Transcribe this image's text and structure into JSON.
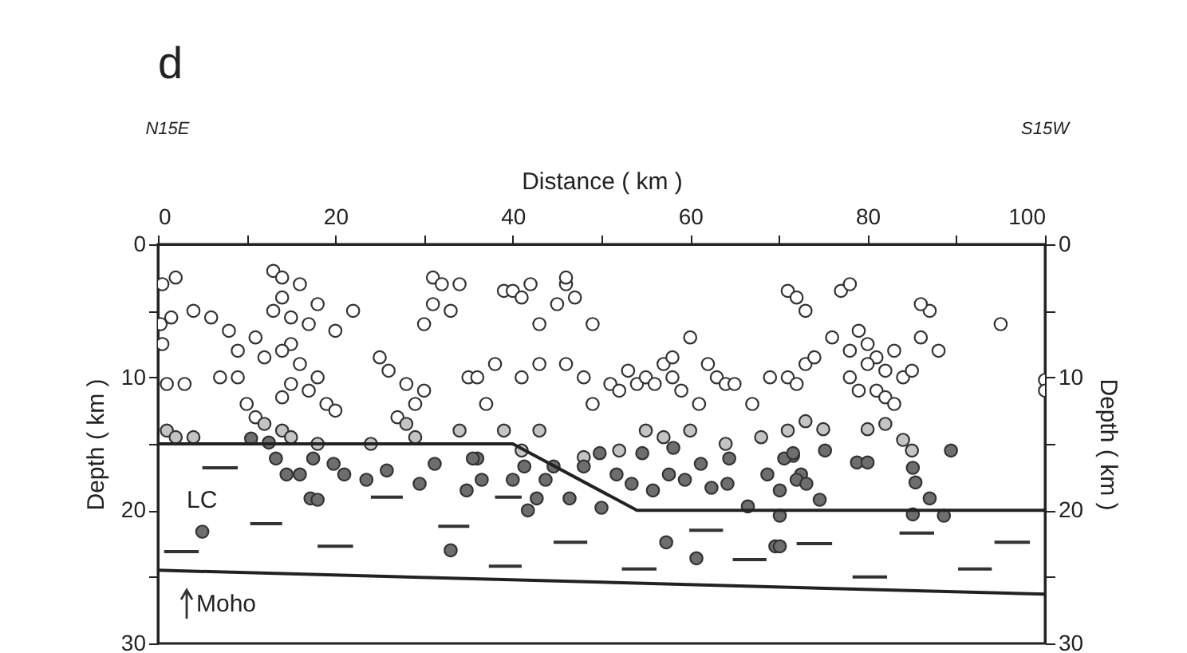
{
  "chart_data": {
    "type": "scatter",
    "xlabel": "Distance ( km )",
    "ylabel": "Depth ( km )",
    "y2label": "Depth ( km )",
    "annotations": [
      "d",
      "N15E",
      "S15W",
      "LC",
      "Moho"
    ],
    "xlim": [
      0,
      100
    ],
    "xticks": [
      0,
      {
        "value": 10,
        "label": null
      },
      20,
      {
        "value": 30,
        "label": null
      },
      40,
      {
        "value": 50,
        "label": null
      },
      60,
      {
        "value": 70,
        "label": null
      },
      80,
      {
        "value": 90,
        "label": null
      },
      100
    ],
    "ylim": [
      30,
      0
    ],
    "yticks": [
      0,
      {
        "value": 5,
        "label": null
      },
      10,
      {
        "value": 15,
        "label": null
      },
      20,
      {
        "value": 25,
        "label": null
      },
      30
    ],
    "y2lim": [
      30,
      0
    ],
    "y2ticks": [
      0,
      {
        "value": 5,
        "label": null
      },
      10,
      {
        "value": 15,
        "label": null
      },
      20,
      {
        "value": 25,
        "label": null
      },
      30
    ],
    "grid": false,
    "series": [
      {
        "marker": "circle",
        "color": "#ffffff",
        "x": [
          0.5,
          2,
          0.3,
          0.5,
          1.5,
          4,
          1,
          3,
          7,
          9,
          8,
          6,
          9,
          11,
          12,
          10,
          11,
          13,
          14,
          14,
          13,
          15,
          15,
          16,
          14,
          17,
          16,
          18,
          20,
          17,
          19,
          20,
          18,
          15,
          14,
          22,
          25,
          26,
          28,
          29,
          27,
          30,
          31,
          32,
          31,
          33,
          34,
          30,
          35,
          36,
          37,
          38,
          39,
          40,
          41,
          42,
          43,
          41,
          43,
          45,
          46,
          46,
          47,
          49,
          46,
          48,
          49,
          51,
          53,
          54,
          52,
          55,
          56,
          57,
          58,
          60,
          58,
          59,
          61,
          62,
          63,
          64,
          65,
          67,
          69,
          71,
          72,
          73,
          74,
          71,
          72,
          73,
          77,
          78,
          76,
          78,
          79,
          80,
          81,
          82,
          83,
          84,
          81,
          82,
          83,
          79,
          80,
          78,
          85,
          86,
          87,
          88,
          86,
          95,
          100,
          100
        ],
        "values": [
          3,
          2.5,
          6,
          7.5,
          5.5,
          5,
          10.5,
          10.5,
          10,
          10,
          6.5,
          5.5,
          8,
          7,
          8.5,
          12,
          13,
          2,
          2.5,
          4,
          5,
          5.5,
          7.5,
          9,
          8,
          6,
          3,
          4.5,
          6.5,
          11,
          12,
          12.5,
          10,
          10.5,
          11.5,
          5,
          8.5,
          9.5,
          10.5,
          12,
          13,
          11,
          2.5,
          3,
          4.5,
          5,
          3,
          6,
          10,
          10,
          12,
          9,
          3.5,
          3.5,
          4,
          3,
          6,
          10,
          9,
          4.5,
          3,
          2.5,
          4,
          6,
          9,
          10,
          12,
          10.5,
          9.5,
          10.5,
          11,
          10,
          10.5,
          9,
          8.5,
          7,
          10,
          11,
          12,
          9,
          10,
          10.5,
          10.5,
          12,
          10,
          10,
          10.5,
          9,
          8.5,
          3.5,
          4,
          5,
          3.5,
          3,
          7,
          8,
          6.5,
          7.5,
          8.5,
          9.5,
          8,
          10,
          11,
          11.5,
          12,
          11,
          9,
          10,
          9.5,
          7,
          5,
          8,
          4.5,
          6,
          10.2,
          11
        ]
      },
      {
        "marker": "circle",
        "color": "#c4c4c4",
        "x": [
          1,
          2,
          4,
          12,
          14,
          15,
          18,
          24,
          28,
          29,
          34,
          39,
          41,
          43,
          48,
          52,
          55,
          57,
          60,
          64,
          68,
          71,
          73,
          75,
          80,
          82,
          84,
          85
        ],
        "values": [
          14,
          14.5,
          14.5,
          13.5,
          14,
          14.5,
          15,
          15,
          13.5,
          14.5,
          14,
          14,
          15.5,
          14,
          16,
          15.5,
          14,
          14.5,
          14,
          15,
          14.5,
          14,
          13.3,
          13.9,
          13.9,
          13.5,
          14.7,
          15.5
        ]
      },
      {
        "marker": "circle",
        "color": "#6e6e6e",
        "x": [
          10.5,
          12.5,
          14.5,
          16,
          17.5,
          19.8,
          17.2,
          18,
          5,
          23.5,
          25.8,
          29.5,
          31.2,
          33,
          34.8,
          36,
          13.3,
          21,
          35.5,
          36.5,
          40,
          41.3,
          41.7,
          42.7,
          43.7,
          44.6,
          46.4,
          48,
          49.8,
          50,
          51.7,
          53.4,
          54.6,
          55.8,
          57.6,
          58.1,
          59.4,
          61.2,
          62.4,
          64.2,
          64.4,
          66.5,
          68.7,
          70.1,
          71.6,
          72.5,
          57.3,
          60.7,
          69.6,
          70.6,
          71.6,
          72,
          73.1,
          74.6,
          70.1,
          70.1,
          75.2,
          78.8,
          80,
          85.1,
          85.4,
          87,
          88.6,
          89.4,
          85.1
        ],
        "values": [
          14.6,
          14.9,
          17.3,
          17.3,
          16.1,
          16.5,
          19.1,
          19.2,
          21.6,
          17.7,
          17,
          18,
          16.5,
          23,
          18.5,
          16.1,
          16.1,
          17.3,
          16.1,
          17.7,
          17.7,
          16.7,
          20,
          19.1,
          17.7,
          16.7,
          19.1,
          16.7,
          15.7,
          19.8,
          17.3,
          18,
          15.7,
          18.5,
          17.3,
          15.3,
          17.7,
          16.5,
          18.3,
          18,
          16.1,
          19.7,
          17.3,
          18.5,
          15.9,
          17.3,
          22.4,
          23.6,
          22.7,
          16.1,
          15.7,
          17.7,
          18,
          19.2,
          20.4,
          22.7,
          15.5,
          16.4,
          16.4,
          16.8,
          17.9,
          19.1,
          20.4,
          15.5,
          20.3
        ]
      },
      {
        "type": "line",
        "color": "#222222",
        "x": [
          0,
          40,
          54,
          100
        ],
        "values": [
          15,
          15,
          20,
          20
        ]
      },
      {
        "type": "line",
        "color": "#222222",
        "x": [
          0,
          100
        ],
        "values": [
          24.5,
          26.3
        ]
      },
      {
        "type": "line",
        "color": "#333333",
        "x": [
          5,
          9
        ],
        "values": [
          16.8,
          16.8
        ]
      },
      {
        "type": "line",
        "color": "#333333",
        "x": [
          0.7,
          4.6
        ],
        "values": [
          23.1,
          23.1
        ]
      },
      {
        "type": "line",
        "color": "#333333",
        "x": [
          10.4,
          14
        ],
        "values": [
          21,
          21
        ]
      },
      {
        "type": "line",
        "color": "#333333",
        "x": [
          18,
          22
        ],
        "values": [
          22.7,
          22.7
        ]
      },
      {
        "type": "line",
        "color": "#333333",
        "x": [
          24,
          27.6
        ],
        "values": [
          19,
          19
        ]
      },
      {
        "type": "line",
        "color": "#333333",
        "x": [
          31.6,
          35.1
        ],
        "values": [
          21.2,
          21.2
        ]
      },
      {
        "type": "line",
        "color": "#333333",
        "x": [
          38,
          41
        ],
        "values": [
          19,
          19
        ]
      },
      {
        "type": "line",
        "color": "#333333",
        "x": [
          37.3,
          41
        ],
        "values": [
          24.2,
          24.2
        ]
      },
      {
        "type": "line",
        "color": "#333333",
        "x": [
          44.6,
          48.4
        ],
        "values": [
          22.4,
          22.4
        ]
      },
      {
        "type": "line",
        "color": "#333333",
        "x": [
          52.3,
          56.2
        ],
        "values": [
          24.4,
          24.4
        ]
      },
      {
        "type": "line",
        "color": "#333333",
        "x": [
          59.9,
          63.7
        ],
        "values": [
          21.5,
          21.5
        ]
      },
      {
        "type": "line",
        "color": "#333333",
        "x": [
          64.8,
          68.6
        ],
        "values": [
          23.7,
          23.7
        ]
      },
      {
        "type": "line",
        "color": "#333333",
        "x": [
          72,
          76
        ],
        "values": [
          22.5,
          22.5
        ]
      },
      {
        "type": "line",
        "color": "#333333",
        "x": [
          78.3,
          82.2
        ],
        "values": [
          25,
          25
        ]
      },
      {
        "type": "line",
        "color": "#333333",
        "x": [
          83.6,
          87.5
        ],
        "values": [
          21.7,
          21.7
        ]
      },
      {
        "type": "line",
        "color": "#333333",
        "x": [
          90.2,
          94
        ],
        "values": [
          24.4,
          24.4
        ]
      },
      {
        "type": "line",
        "color": "#333333",
        "x": [
          94.3,
          98.3
        ],
        "values": [
          22.4,
          22.4
        ]
      }
    ]
  }
}
